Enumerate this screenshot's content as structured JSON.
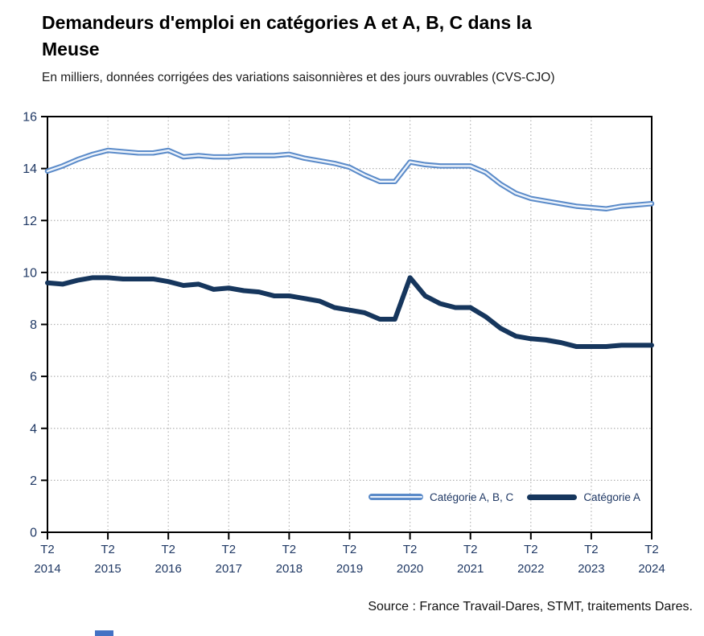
{
  "title": {
    "line1": "Demandeurs d'emploi en catégories A et A, B, C dans la",
    "line2": "Meuse"
  },
  "subtitle": "En milliers, données corrigées des variations saisonnières et des jours ouvrables (CVS-CJO)",
  "source": "Source : France Travail-Dares, STMT, traitements Dares.",
  "chart_data": {
    "type": "line",
    "x_unit": "quarter",
    "x": [
      "2014-T2",
      "2014-T3",
      "2014-T4",
      "2015-T1",
      "2015-T2",
      "2015-T3",
      "2015-T4",
      "2016-T1",
      "2016-T2",
      "2016-T3",
      "2016-T4",
      "2017-T1",
      "2017-T2",
      "2017-T3",
      "2017-T4",
      "2018-T1",
      "2018-T2",
      "2018-T3",
      "2018-T4",
      "2019-T1",
      "2019-T2",
      "2019-T3",
      "2019-T4",
      "2020-T1",
      "2020-T2",
      "2020-T3",
      "2020-T4",
      "2021-T1",
      "2021-T2",
      "2021-T3",
      "2021-T4",
      "2022-T1",
      "2022-T2",
      "2022-T3",
      "2022-T4",
      "2023-T1",
      "2023-T2",
      "2023-T3",
      "2023-T4",
      "2024-T1",
      "2024-T2"
    ],
    "x_axis": {
      "tick_quarter_label": "T2",
      "tick_years": [
        "2014",
        "2015",
        "2016",
        "2017",
        "2018",
        "2019",
        "2020",
        "2021",
        "2022",
        "2023",
        "2024"
      ],
      "tick_every_n_points": 4
    },
    "y_axis": {
      "ticks": [
        0,
        2,
        4,
        6,
        8,
        10,
        12,
        14,
        16
      ]
    },
    "ylim": [
      0,
      16
    ],
    "grid": "dotted",
    "legend_position": "inside-bottom-right",
    "series": [
      {
        "name": "Catégorie A, B, C",
        "style": "double-line",
        "color": "#5b8bc9",
        "values": [
          13.9,
          14.1,
          14.35,
          14.55,
          14.7,
          14.65,
          14.6,
          14.6,
          14.7,
          14.45,
          14.5,
          14.45,
          14.45,
          14.5,
          14.5,
          14.5,
          14.55,
          14.4,
          14.3,
          14.2,
          14.05,
          13.75,
          13.5,
          13.5,
          14.25,
          14.15,
          14.1,
          14.1,
          14.1,
          13.85,
          13.4,
          13.05,
          12.85,
          12.75,
          12.65,
          12.55,
          12.5,
          12.45,
          12.55,
          12.6,
          12.65
        ]
      },
      {
        "name": "Catégorie A",
        "style": "solid-thick",
        "color": "#16365d",
        "values": [
          9.6,
          9.55,
          9.7,
          9.8,
          9.8,
          9.75,
          9.75,
          9.75,
          9.65,
          9.5,
          9.55,
          9.35,
          9.4,
          9.3,
          9.25,
          9.1,
          9.1,
          9.0,
          8.9,
          8.65,
          8.55,
          8.45,
          8.2,
          8.2,
          9.8,
          9.1,
          8.8,
          8.65,
          8.65,
          8.3,
          7.85,
          7.55,
          7.45,
          7.4,
          7.3,
          7.15,
          7.15,
          7.15,
          7.2,
          7.2,
          7.2
        ]
      }
    ]
  },
  "colors": {
    "series_abc_stroke": "#5b8bc9",
    "series_abc_core": "#eef4fc",
    "series_a": "#16365d",
    "axis_label": "#1f3864",
    "grid": "#b3b3b3",
    "frame": "#000000",
    "legend_text": "#1f3864",
    "footer_fragment": "#4472c4"
  }
}
